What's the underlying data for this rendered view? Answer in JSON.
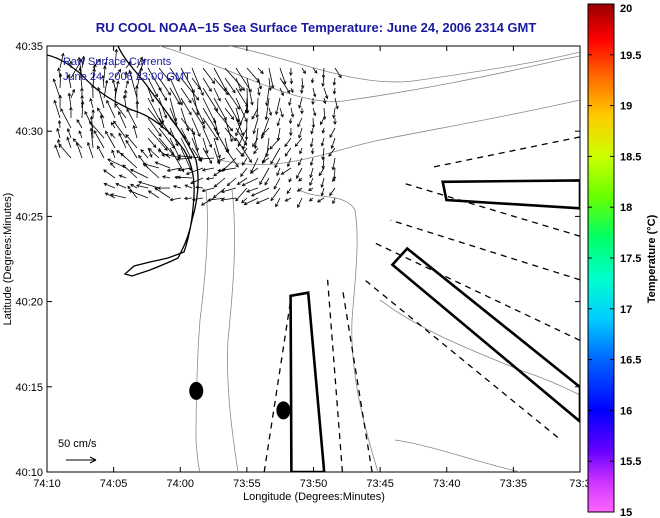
{
  "chart_data": {
    "type": "scatter",
    "title": "RU COOL  NOAA−15  Sea Surface Temperature:  June 24, 2006 2314 GMT",
    "xlabel": "Longitude (Degrees:Minutes)",
    "ylabel": "Latitude (Degrees:Minutes)",
    "xticks": [
      "74:10",
      "74:05",
      "74:00",
      "73:55",
      "73:50",
      "73:45",
      "73:40",
      "73:35",
      "73:3"
    ],
    "yticks": [
      "40:35",
      "40:30",
      "40:25",
      "40:20",
      "40:15",
      "40:10"
    ],
    "xlim": [
      -74.1667,
      -73.5
    ],
    "ylim": [
      40.1667,
      40.5833
    ],
    "annotations": [
      "Raw Surface Currents",
      "June 24, 2006 23:00 GMT"
    ],
    "scale_label": "50 cm/s",
    "colorbar": {
      "label": "Temperature (°C)",
      "ticks": [
        "20",
        "19.5",
        "19",
        "18.5",
        "18",
        "17.5",
        "17",
        "16.5",
        "16",
        "15.5",
        "15"
      ],
      "range": [
        15,
        20
      ]
    },
    "markers": [
      {
        "name": "buoy-1",
        "lon": -73.98,
        "lat": 40.246
      },
      {
        "name": "buoy-2",
        "lon": -73.871,
        "lat": 40.227
      }
    ],
    "outlines": [
      {
        "name": "box-a",
        "pts": [
          [
            -73.861,
            40.1667
          ],
          [
            -73.862,
            40.339
          ],
          [
            -73.84,
            40.342
          ],
          [
            -73.82,
            40.1667
          ]
        ]
      },
      {
        "name": "box-b",
        "pts": [
          [
            -73.6718,
            40.4505
          ],
          [
            -73.5,
            40.4519
          ],
          [
            -73.5,
            40.4246
          ],
          [
            -73.6671,
            40.4327
          ]
        ]
      },
      {
        "name": "box-c",
        "pts": [
          [
            -73.7347,
            40.3693
          ],
          [
            -73.7161,
            40.3853
          ],
          [
            -73.5,
            40.2497
          ],
          [
            -73.5,
            40.2161
          ]
        ]
      }
    ],
    "dashed_lines": [
      {
        "name": "dash-1",
        "pts": [
          [
            -73.895,
            40.1667
          ],
          [
            -73.8625,
            40.3317
          ]
        ]
      },
      {
        "name": "dash-2",
        "pts": [
          [
            -73.7972,
            40.1667
          ],
          [
            -73.8157,
            40.3546
          ]
        ]
      },
      {
        "name": "dash-3",
        "pts": [
          [
            -73.7601,
            40.1667
          ],
          [
            -73.7972,
            40.3463
          ]
        ]
      },
      {
        "name": "dash-4",
        "pts": [
          [
            -73.5278,
            40.2005
          ],
          [
            -73.7693,
            40.3546
          ]
        ]
      },
      {
        "name": "dash-5",
        "pts": [
          [
            -73.5,
            40.2954
          ],
          [
            -73.7555,
            40.3903
          ]
        ]
      },
      {
        "name": "dash-6",
        "pts": [
          [
            -73.5,
            40.3546
          ],
          [
            -73.7369,
            40.413
          ]
        ]
      },
      {
        "name": "dash-7",
        "pts": [
          [
            -73.5,
            40.3973
          ],
          [
            -73.7184,
            40.4486
          ]
        ]
      },
      {
        "name": "dash-8",
        "pts": [
          [
            -73.5,
            40.4944
          ],
          [
            -73.6856,
            40.4646
          ]
        ]
      }
    ]
  }
}
